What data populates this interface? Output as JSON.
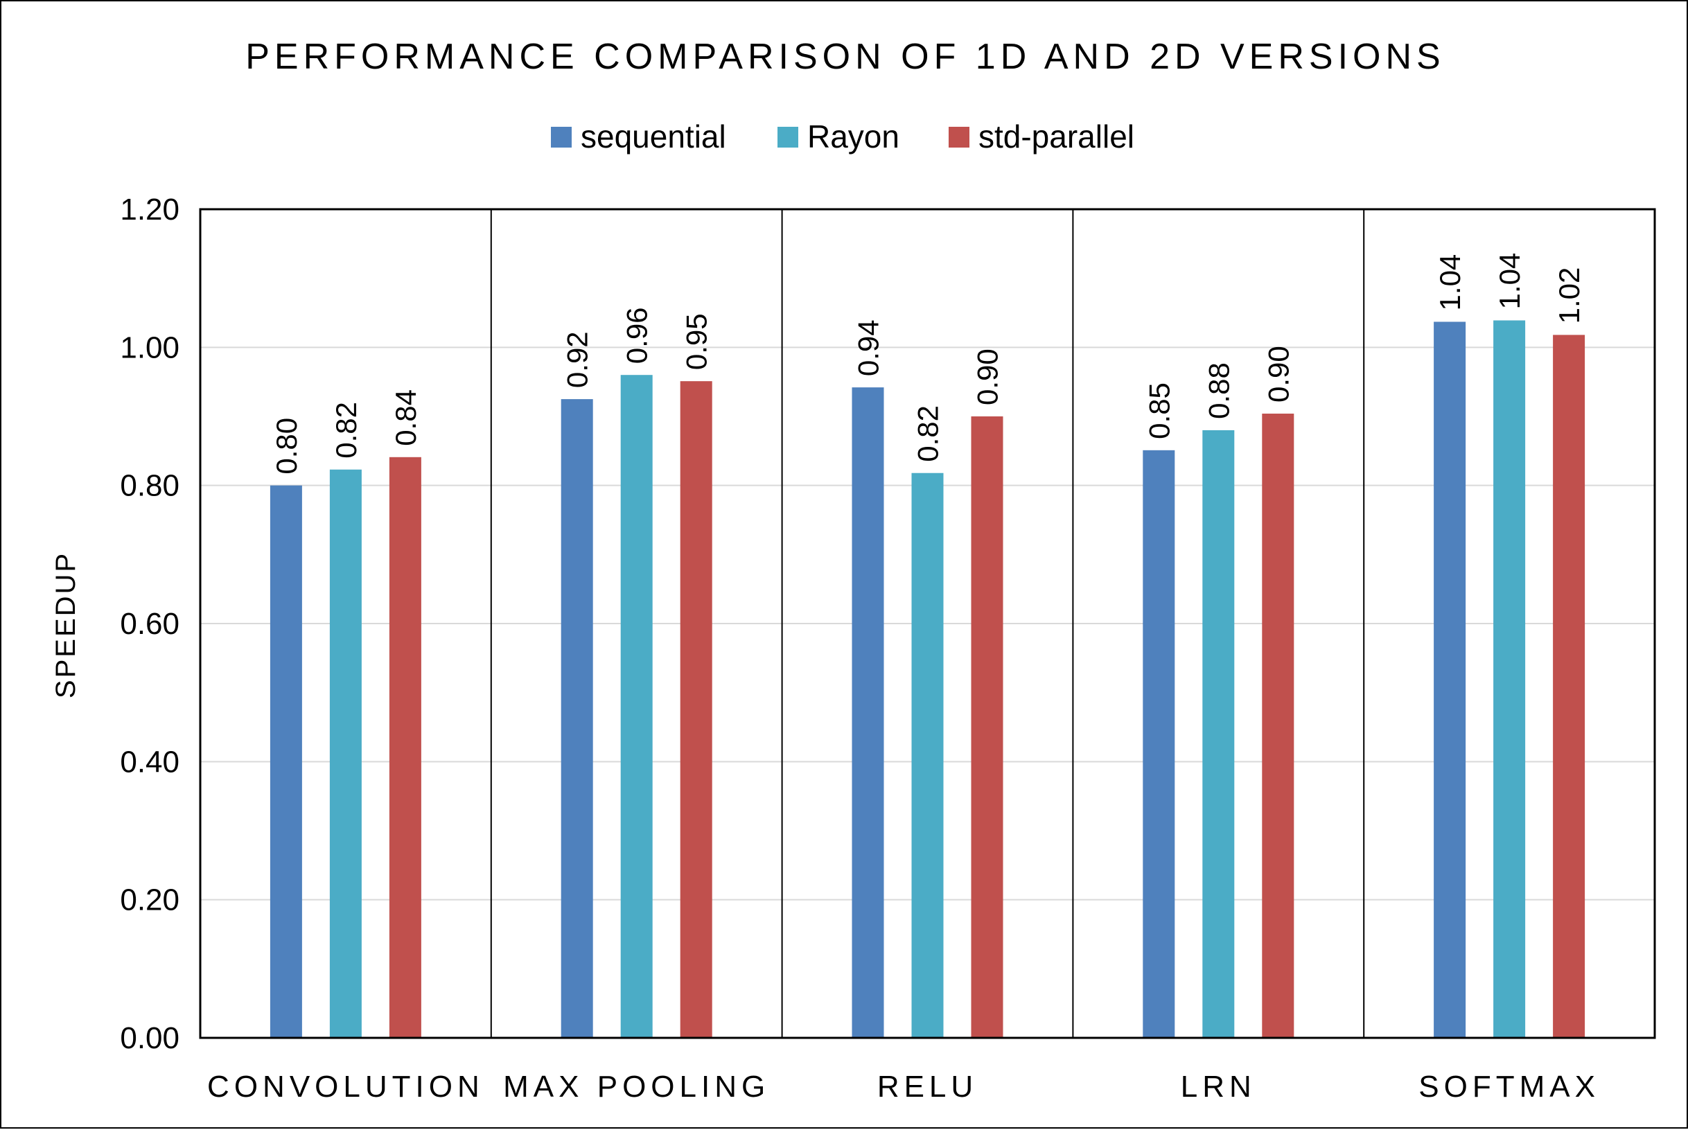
{
  "chart_data": {
    "type": "bar",
    "title": "PERFORMANCE COMPARISON OF 1D AND 2D VERSIONS",
    "xlabel": "",
    "ylabel": "SPEEDUP",
    "ylim": [
      0,
      1.2
    ],
    "yticks": [
      "0.00",
      "0.20",
      "0.40",
      "0.60",
      "0.80",
      "1.00",
      "1.20"
    ],
    "categories": [
      "CONVOLUTION",
      "MAX POOLING",
      "RELU",
      "LRN",
      "SOFTMAX"
    ],
    "series": [
      {
        "name": "sequential",
        "color": "#4F81BD",
        "values": [
          0.8,
          0.925,
          0.942,
          0.851,
          1.037
        ],
        "labels": [
          "0.80",
          "0.92",
          "0.94",
          "0.85",
          "1.04"
        ]
      },
      {
        "name": "Rayon",
        "color": "#4BACC6",
        "values": [
          0.823,
          0.96,
          0.818,
          0.88,
          1.039
        ],
        "labels": [
          "0.82",
          "0.96",
          "0.82",
          "0.88",
          "1.04"
        ]
      },
      {
        "name": "std-parallel",
        "color": "#C0504D",
        "values": [
          0.841,
          0.951,
          0.9,
          0.904,
          1.018
        ],
        "labels": [
          "0.84",
          "0.95",
          "0.90",
          "0.90",
          "1.02"
        ]
      }
    ],
    "legend_position": "top-center",
    "grid": true
  }
}
